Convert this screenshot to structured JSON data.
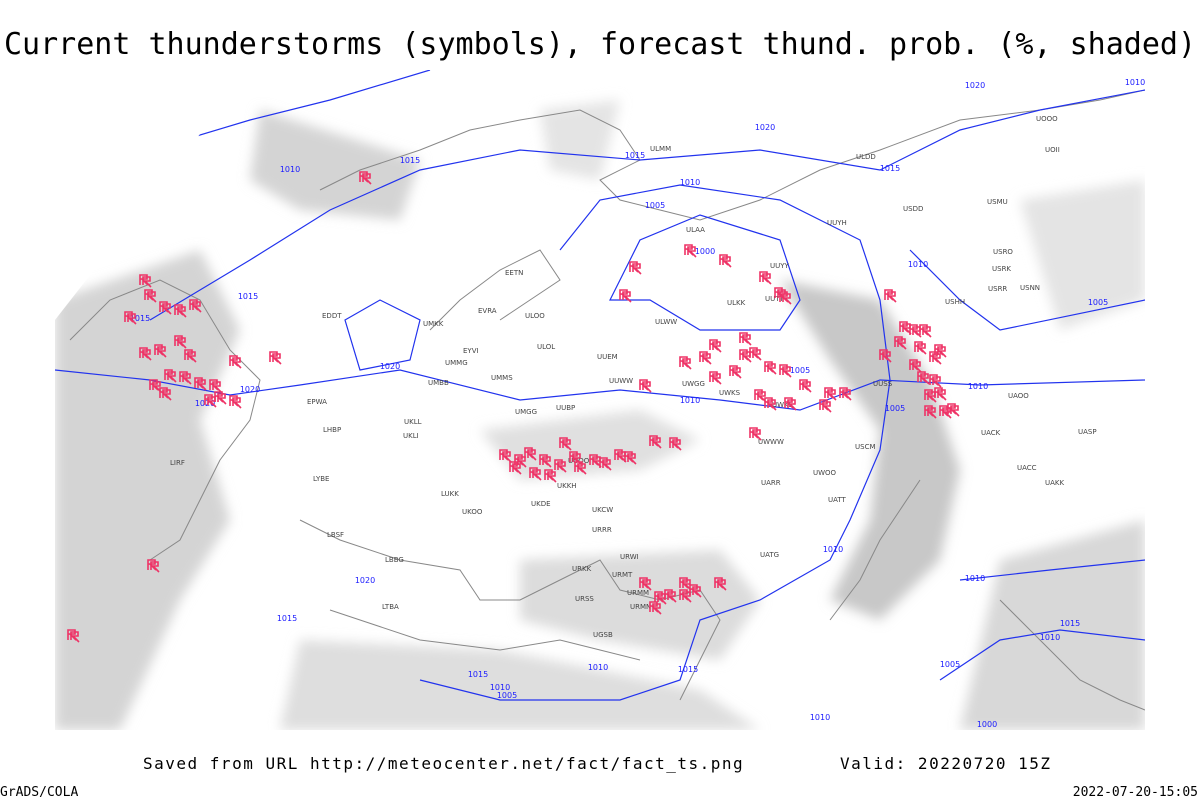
{
  "title": "Current thunderstorms (symbols), forecast thund. prob. (%, shaded)",
  "footer": {
    "source": "Saved from URL http://meteocenter.net/fact/fact_ts.png",
    "valid": "Valid: 20220720 15Z",
    "left": "GrADS/COLA",
    "right": "2022-07-20-15:05"
  },
  "isobar_labels": [
    "1020",
    "1020",
    "1020",
    "1020",
    "1020",
    "1020",
    "1015",
    "1015",
    "1015",
    "1015",
    "1015",
    "1015",
    "1015",
    "1015",
    "1015",
    "1010",
    "1010",
    "1010",
    "1010",
    "1010",
    "1010",
    "1010",
    "1010",
    "1010",
    "1010",
    "1010",
    "1010",
    "1005",
    "1005",
    "1005",
    "1005",
    "1005",
    "1005",
    "1000",
    "1000"
  ],
  "stations": [
    "ULMM",
    "ULOO",
    "ULOL",
    "UUEM",
    "UMMS",
    "UMGG",
    "UUBP",
    "UKLL",
    "UKLI",
    "UUOO",
    "UKKH",
    "UKDE",
    "UKCW",
    "URRR",
    "URKK",
    "URSS",
    "UGSB",
    "URMM",
    "URMN",
    "URMT",
    "URWI",
    "UATG",
    "UARR",
    "UWOO",
    "UWWW",
    "UWKE",
    "UWKS",
    "UWGG",
    "UUWW",
    "ULWW",
    "ULAA",
    "ULKK",
    "UUYY",
    "UUTT",
    "UUYH",
    "UUSS",
    "UACC",
    "UAKK",
    "UASP",
    "UAOO",
    "UACK",
    "USCM",
    "UATT",
    "USRR",
    "USNN",
    "USRK",
    "USRO",
    "USHH",
    "USMU",
    "USDD",
    "UOII",
    "UOOO",
    "ULDD",
    "EETN",
    "EVRA",
    "EYVI",
    "UMMG",
    "UMBB",
    "EPWA",
    "LHBP",
    "LYBE",
    "LBSF",
    "LBBG",
    "LTBA",
    "UKOO",
    "LUKK",
    "LIRF",
    "EDDT",
    "UMKK"
  ]
}
